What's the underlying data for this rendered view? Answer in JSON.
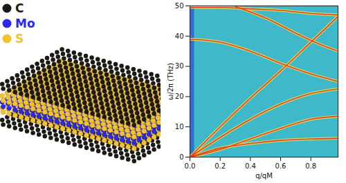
{
  "chart_data": {
    "type": "line",
    "xlabel": "q/qM",
    "ylabel": "ω/2π (THz)",
    "xlim": [
      0,
      0.98
    ],
    "ylim": [
      0,
      50
    ],
    "xticks": [
      {
        "value": 0,
        "label": "0.0"
      },
      0.2,
      0.4,
      0.6,
      0.8
    ],
    "yticks": [
      0,
      10,
      20,
      30,
      40,
      50
    ],
    "color": "#e8401c",
    "series": [
      {
        "x": [
          0,
          0.2,
          0.4,
          0.6,
          0.8,
          0.98
        ],
        "values": [
          0,
          10,
          19.5,
          28.5,
          38,
          46.5
        ]
      },
      {
        "x": [
          0,
          0.2,
          0.4,
          0.6,
          0.8,
          0.98
        ],
        "values": [
          0,
          6.5,
          12.5,
          17.5,
          21,
          22.5
        ]
      },
      {
        "x": [
          0,
          0.2,
          0.4,
          0.6,
          0.8,
          0.98
        ],
        "values": [
          0,
          2.5,
          6,
          9.5,
          12.5,
          13.5
        ]
      },
      {
        "x": [
          0,
          0.2,
          0.4,
          0.6,
          0.8,
          0.98
        ],
        "values": [
          0,
          3,
          4.5,
          5.5,
          6,
          6.2
        ]
      },
      {
        "x": [
          0,
          0.2,
          0.4,
          0.6,
          0.8,
          0.98
        ],
        "values": [
          39,
          38,
          35,
          31,
          27.5,
          25
        ]
      },
      {
        "x": [
          0.3,
          0.5,
          0.7,
          0.85,
          0.98
        ],
        "values": [
          49.8,
          46,
          41,
          37.5,
          35
        ]
      },
      {
        "x": [
          0,
          0.2,
          0.4,
          0.6,
          0.8,
          0.98
        ],
        "values": [
          49.5,
          49.5,
          49,
          48.5,
          47.5,
          47
        ]
      }
    ]
  },
  "diagram": {
    "legend": [
      {
        "label": "C",
        "color": "#1c1a14"
      },
      {
        "label": "Mo",
        "color": "#2a2aee"
      },
      {
        "label": "S",
        "color": "#f2c230"
      }
    ]
  }
}
